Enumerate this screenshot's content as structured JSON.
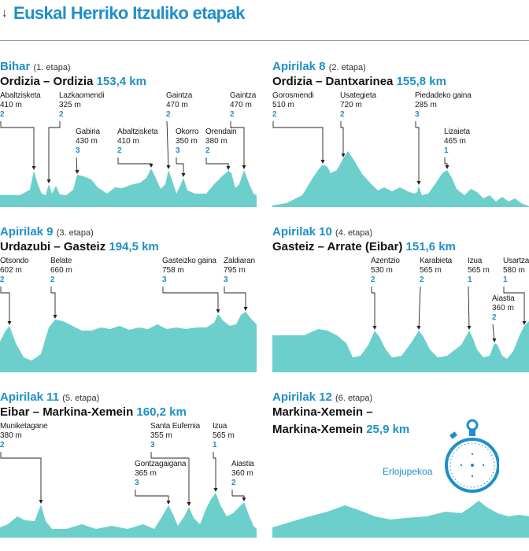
{
  "header": {
    "title": "Euskal Herriko Itzuliko etapak",
    "arrow_icon": "arrow-down-icon"
  },
  "colors": {
    "accent": "#1f8fc7",
    "profile": "#6ccfcb"
  },
  "stages": [
    {
      "date": "Bihar",
      "number": "(1. etapa)",
      "route": "Ordizia – Ordizia",
      "distance": "153,4 km",
      "climbs": [
        {
          "name": "Abaltzisketa",
          "elev": "410 m",
          "cat": "2"
        },
        {
          "name": "Lazkaomendi",
          "elev": "325 m",
          "cat": "2"
        },
        {
          "name": "Gabiria",
          "elev": "430 m",
          "cat": "3"
        },
        {
          "name": "Abaltzisketa",
          "elev": "410 m",
          "cat": "2"
        },
        {
          "name": "Gaintza",
          "elev": "470 m",
          "cat": "2"
        },
        {
          "name": "Okorro",
          "elev": "350 m",
          "cat": "3"
        },
        {
          "name": "Orendain",
          "elev": "380 m",
          "cat": "2"
        },
        {
          "name": "Gaintza",
          "elev": "470 m",
          "cat": "2"
        }
      ]
    },
    {
      "date": "Apirilak 8",
      "number": "(2. etapa)",
      "route": "Ordizia – Dantxarinea",
      "distance": "155,8 km",
      "climbs": [
        {
          "name": "Gorosmendi",
          "elev": "510 m",
          "cat": "2"
        },
        {
          "name": "Usategieta",
          "elev": "720 m",
          "cat": "2"
        },
        {
          "name": "Piedadeko gaina",
          "elev": "285 m",
          "cat": "3"
        },
        {
          "name": "Lizaieta",
          "elev": "465 m",
          "cat": "1"
        }
      ]
    },
    {
      "date": "Apirilak 9",
      "number": "(3. etapa)",
      "route": "Urdazubi – Gasteiz",
      "distance": "194,5 km",
      "climbs": [
        {
          "name": "Otsondo",
          "elev": "602 m",
          "cat": "2"
        },
        {
          "name": "Belate",
          "elev": "660 m",
          "cat": "2"
        },
        {
          "name": "Gasteizko gaina",
          "elev": "758 m",
          "cat": "3"
        },
        {
          "name": "Zaldiaran",
          "elev": "795 m",
          "cat": "3"
        }
      ]
    },
    {
      "date": "Apirilak 10",
      "number": "(4. etapa)",
      "route": "Gasteiz – Arrate (Eibar)",
      "distance": "151,6 km",
      "climbs": [
        {
          "name": "Azentzio",
          "elev": "530 m",
          "cat": "2"
        },
        {
          "name": "Karabieta",
          "elev": "565 m",
          "cat": "2"
        },
        {
          "name": "Izua",
          "elev": "565 m",
          "cat": "1"
        },
        {
          "name": "Usartza",
          "elev": "580 m",
          "cat": "1"
        },
        {
          "name": "Aiastia",
          "elev": "360 m",
          "cat": "2"
        }
      ]
    },
    {
      "date": "Apirilak 11",
      "number": "(5. etapa)",
      "route": "Eibar – Markina-Xemein",
      "distance": "160,2 km",
      "climbs": [
        {
          "name": "Muniketagane",
          "elev": "380 m",
          "cat": "2"
        },
        {
          "name": "Santa Eufemia",
          "elev": "355 m",
          "cat": "3"
        },
        {
          "name": "Izua",
          "elev": "565 m",
          "cat": "1"
        },
        {
          "name": "Gontzagaigana",
          "elev": "365 m",
          "cat": "3"
        },
        {
          "name": "Aiastia",
          "elev": "360 m",
          "cat": "2"
        }
      ]
    },
    {
      "date": "Apirilak 12",
      "number": "(6. etapa)",
      "route_line1": "Markina-Xemein –",
      "route": "Markina-Xemein",
      "distance": "25,9 km",
      "label": "Erlojupekoa",
      "icon": "stopwatch-icon",
      "climbs": []
    }
  ],
  "chart_data": {
    "type": "area",
    "title": "Euskal Herriko Itzuliko etapak",
    "series": [
      {
        "stage": "1. etapa",
        "climbs": [
          "Abaltzisketa",
          "Lazkaomendi",
          "Gabiria",
          "Abaltzisketa",
          "Gaintza",
          "Okorro",
          "Orendain",
          "Gaintza"
        ],
        "elevations_m": [
          410,
          325,
          430,
          410,
          470,
          350,
          380,
          470
        ],
        "categories": [
          2,
          2,
          3,
          2,
          2,
          3,
          2,
          2
        ]
      },
      {
        "stage": "2. etapa",
        "climbs": [
          "Gorosmendi",
          "Usategieta",
          "Piedadeko gaina",
          "Lizaieta"
        ],
        "elevations_m": [
          510,
          720,
          285,
          465
        ],
        "categories": [
          2,
          2,
          3,
          1
        ]
      },
      {
        "stage": "3. etapa",
        "climbs": [
          "Otsondo",
          "Belate",
          "Gasteizko gaina",
          "Zaldiaran"
        ],
        "elevations_m": [
          602,
          660,
          758,
          795
        ],
        "categories": [
          2,
          2,
          3,
          3
        ]
      },
      {
        "stage": "4. etapa",
        "climbs": [
          "Azentzio",
          "Karabieta",
          "Izua",
          "Usartza",
          "Aiastia"
        ],
        "elevations_m": [
          530,
          565,
          565,
          580,
          360
        ],
        "categories": [
          2,
          2,
          1,
          1,
          2
        ]
      },
      {
        "stage": "5. etapa",
        "climbs": [
          "Muniketagane",
          "Santa Eufemia",
          "Izua",
          "Gontzagaigana",
          "Aiastia"
        ],
        "elevations_m": [
          380,
          355,
          565,
          365,
          360
        ],
        "categories": [
          2,
          3,
          1,
          3,
          2
        ]
      },
      {
        "stage": "6. etapa",
        "climbs": [],
        "elevations_m": [],
        "categories": []
      }
    ]
  }
}
